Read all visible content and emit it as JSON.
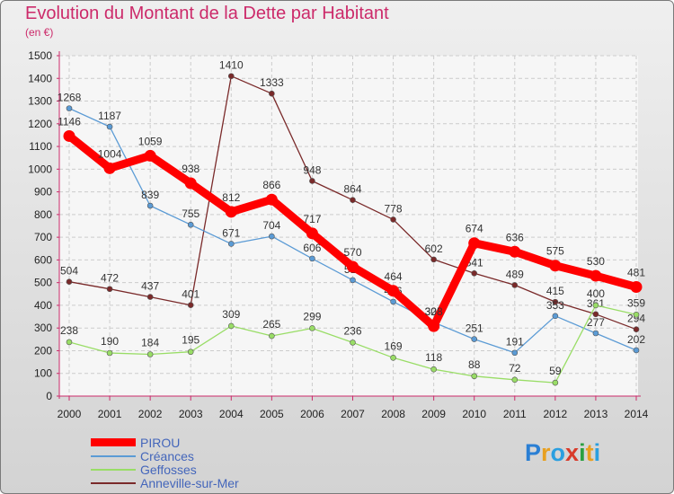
{
  "chart_data": {
    "type": "line",
    "title": "Evolution du Montant de la Dette par Habitant",
    "subtitle": "(en €)",
    "x": [
      "2000",
      "2001",
      "2002",
      "2003",
      "2004",
      "2005",
      "2006",
      "2007",
      "2008",
      "2009",
      "2010",
      "2011",
      "2012",
      "2013",
      "2014"
    ],
    "ylim": [
      0,
      1500
    ],
    "yticks": [
      0,
      100,
      200,
      300,
      400,
      500,
      600,
      700,
      800,
      900,
      1000,
      1100,
      1200,
      1300,
      1400,
      1500
    ],
    "grid": true,
    "legend": "bottom-left",
    "series": [
      {
        "name": "PIROU",
        "color": "#ff0000",
        "values": [
          1146,
          1004,
          1059,
          938,
          812,
          866,
          717,
          570,
          464,
          308,
          674,
          636,
          575,
          530,
          481
        ]
      },
      {
        "name": "Créances",
        "color": "#5b9bd5",
        "values": [
          1268,
          1187,
          839,
          755,
          671,
          704,
          606,
          511,
          416,
          325,
          251,
          191,
          353,
          277,
          202
        ]
      },
      {
        "name": "Geffosses",
        "color": "#99dd66",
        "values": [
          238,
          190,
          184,
          195,
          309,
          265,
          299,
          236,
          169,
          118,
          88,
          72,
          59,
          400,
          359
        ]
      },
      {
        "name": "Anneville-sur-Mer",
        "color": "#7a2a2a",
        "values": [
          504,
          472,
          437,
          401,
          1410,
          1333,
          948,
          864,
          778,
          602,
          541,
          489,
          415,
          361,
          294
        ]
      }
    ]
  },
  "logo": {
    "letters": [
      {
        "ch": "P",
        "color": "#2a7fd4"
      },
      {
        "ch": "r",
        "color": "#e8a020"
      },
      {
        "ch": "o",
        "color": "#2a9fe0"
      },
      {
        "ch": "x",
        "color": "#d83a2a"
      },
      {
        "ch": "i",
        "color": "#2aa040"
      },
      {
        "ch": "t",
        "color": "#e8a020"
      },
      {
        "ch": "i",
        "color": "#2a9fe0"
      }
    ]
  }
}
